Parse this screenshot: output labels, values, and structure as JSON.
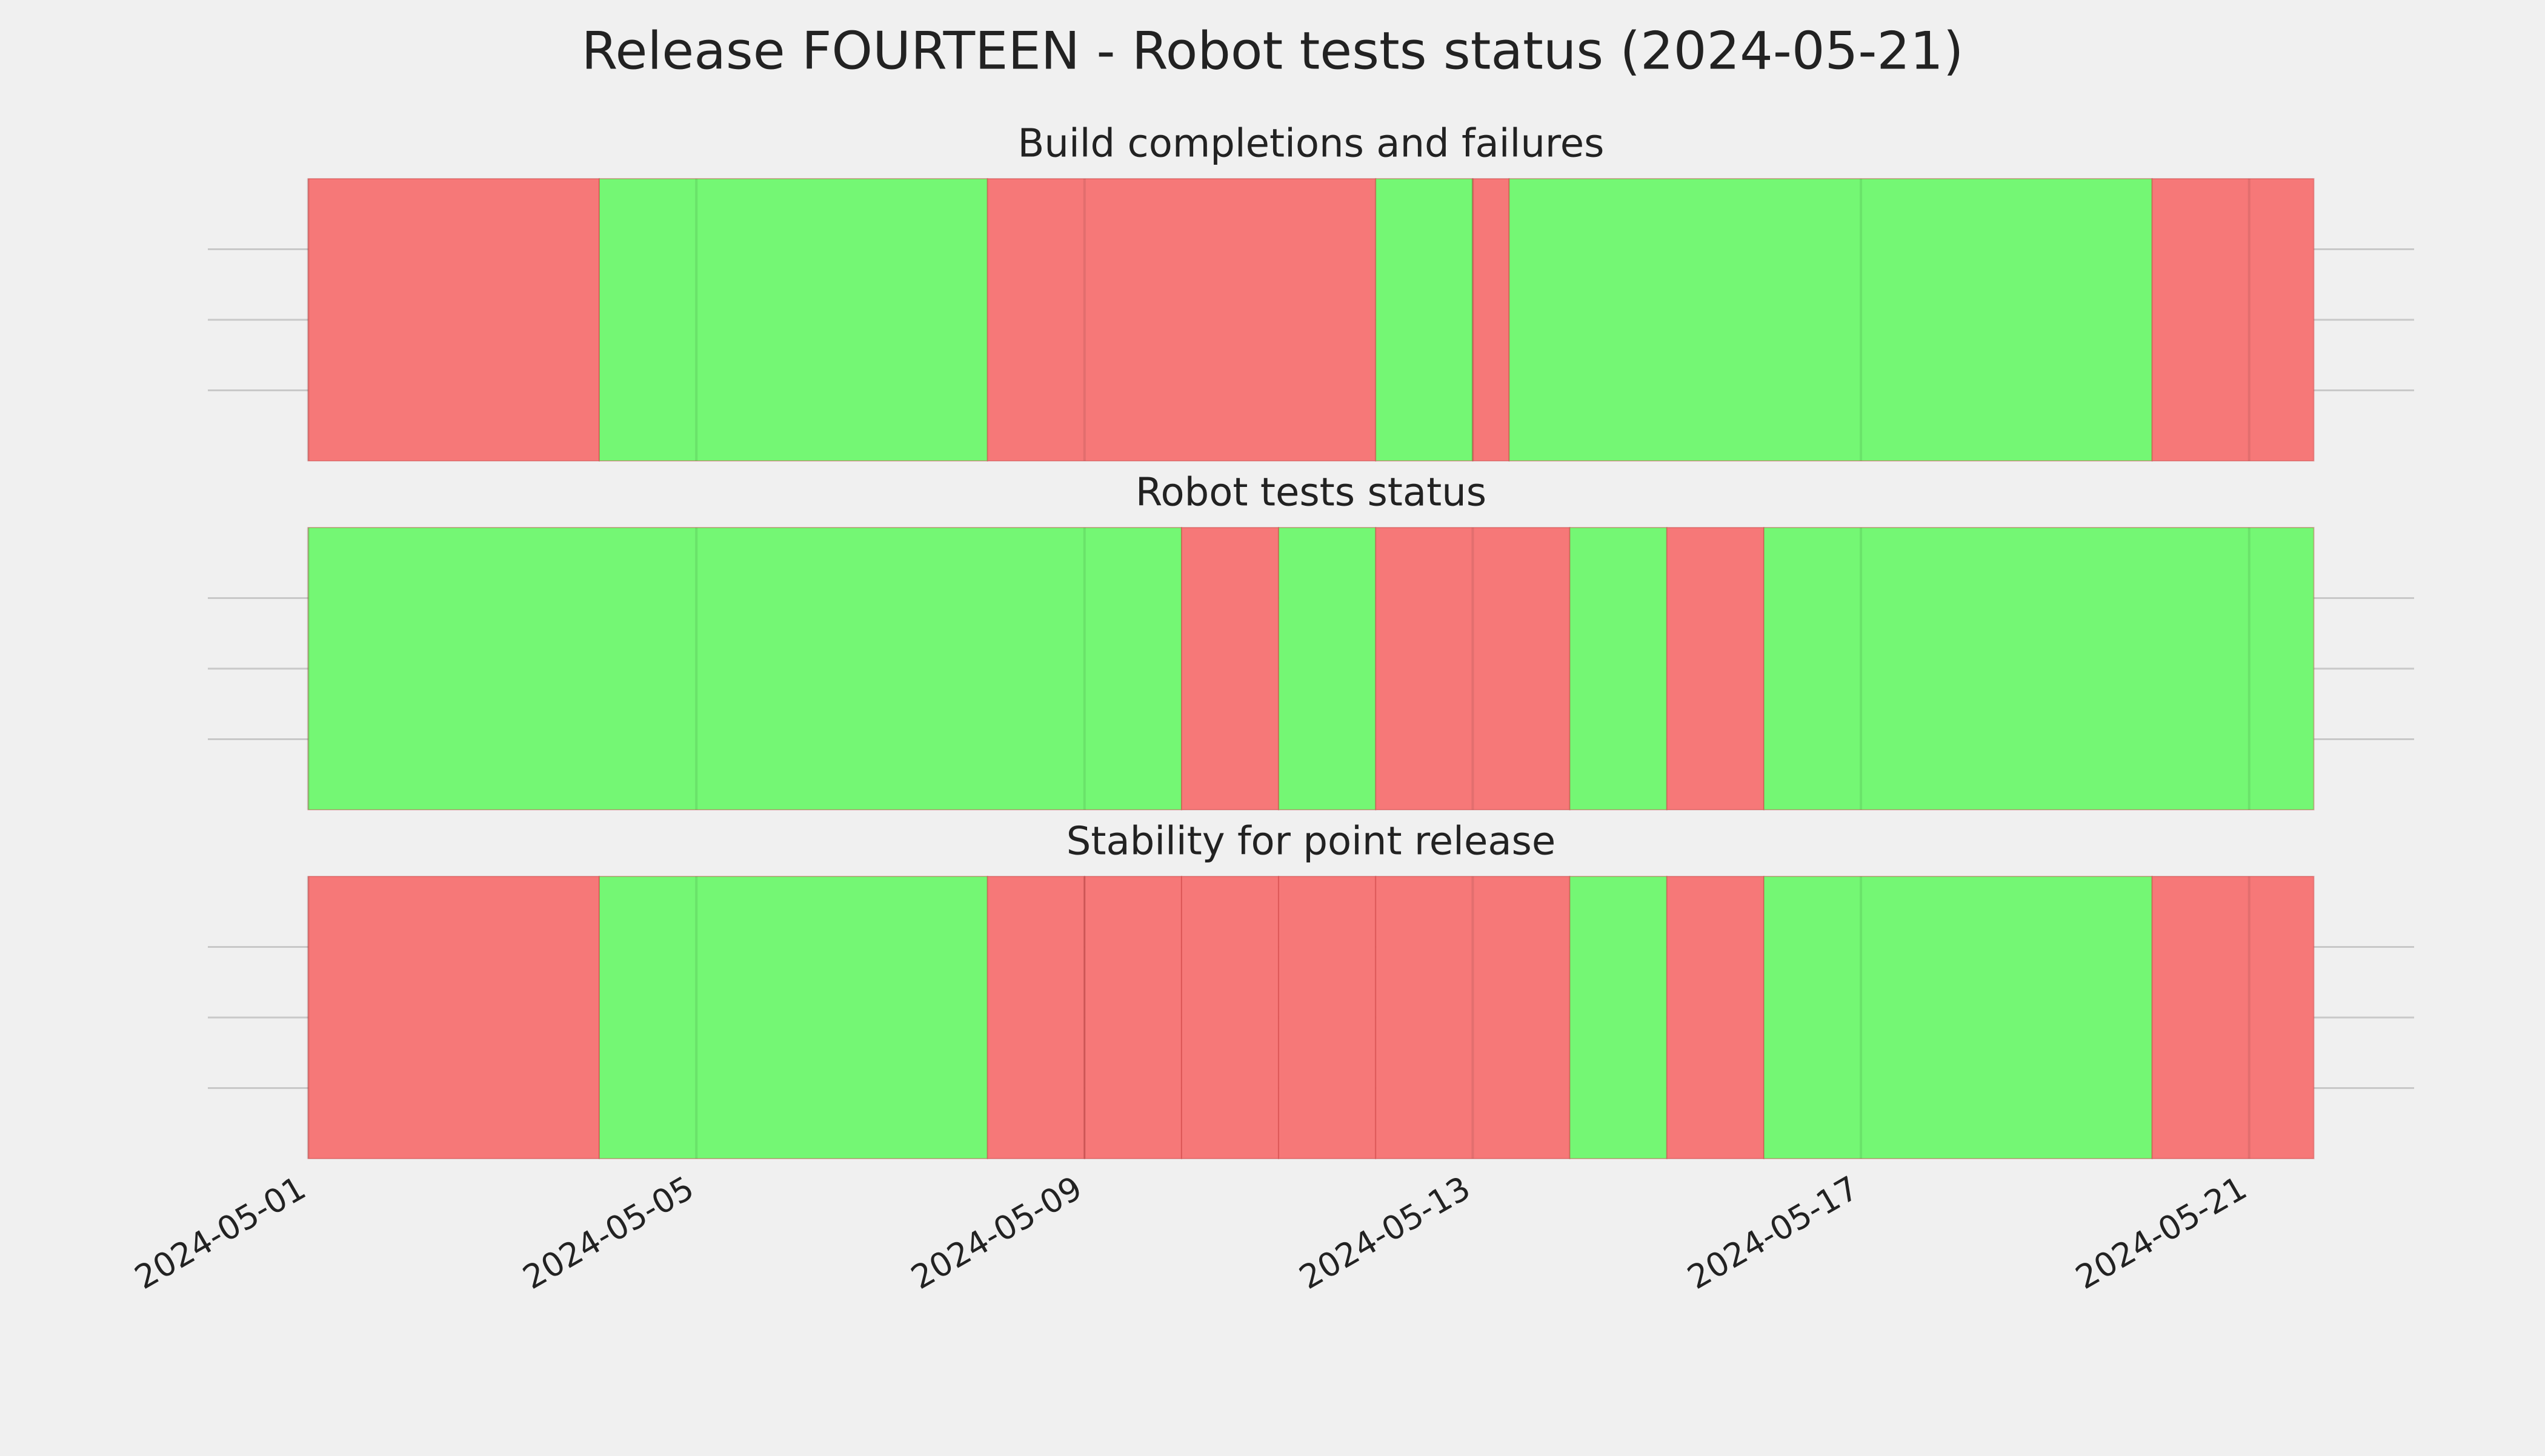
{
  "title": "Release FOURTEEN - Robot tests status (2024-05-21)",
  "chart_data": [
    {
      "type": "span",
      "title": "Build completions and failures",
      "xlim": [
        "2024-04-29T23:12",
        "2024-05-22T16:48"
      ],
      "xticks": [
        "2024-05-01",
        "2024-05-05",
        "2024-05-09",
        "2024-05-13",
        "2024-05-17",
        "2024-05-21"
      ],
      "segments": [
        {
          "start": "2024-05-01",
          "end": "2024-05-04",
          "color": "#f67878"
        },
        {
          "start": "2024-05-04",
          "end": "2024-05-08",
          "color": "#74f774"
        },
        {
          "start": "2024-05-08",
          "end": "2024-05-12",
          "color": "#f67878"
        },
        {
          "start": "2024-05-12",
          "end": "2024-05-13",
          "color": "#74f774"
        },
        {
          "start": "2024-05-13",
          "end": "2024-05-13T09:00",
          "color": "#f67878"
        },
        {
          "start": "2024-05-13T09:00",
          "end": "2024-05-20",
          "color": "#74f774"
        },
        {
          "start": "2024-05-20",
          "end": "2024-05-21T16:00",
          "color": "#f67878"
        }
      ]
    },
    {
      "type": "span",
      "title": "Robot tests status",
      "xlim": [
        "2024-04-29T23:12",
        "2024-05-22T16:48"
      ],
      "xticks": [
        "2024-05-01",
        "2024-05-05",
        "2024-05-09",
        "2024-05-13",
        "2024-05-17",
        "2024-05-21"
      ],
      "segments": [
        {
          "start": "2024-05-01",
          "end": "2024-05-10",
          "color": "#74f774"
        },
        {
          "start": "2024-05-10",
          "end": "2024-05-11",
          "color": "#f67878"
        },
        {
          "start": "2024-05-11",
          "end": "2024-05-12",
          "color": "#74f774"
        },
        {
          "start": "2024-05-12",
          "end": "2024-05-14",
          "color": "#f67878"
        },
        {
          "start": "2024-05-14",
          "end": "2024-05-15",
          "color": "#74f774"
        },
        {
          "start": "2024-05-15",
          "end": "2024-05-16",
          "color": "#f67878"
        },
        {
          "start": "2024-05-16",
          "end": "2024-05-21T16:00",
          "color": "#74f774"
        }
      ]
    },
    {
      "type": "span",
      "title": "Stability for point release",
      "xlim": [
        "2024-04-29T23:12",
        "2024-05-22T16:48"
      ],
      "xticks": [
        "2024-05-01",
        "2024-05-05",
        "2024-05-09",
        "2024-05-13",
        "2024-05-17",
        "2024-05-21"
      ],
      "segments": [
        {
          "start": "2024-05-01",
          "end": "2024-05-04",
          "color": "#f67878"
        },
        {
          "start": "2024-05-04",
          "end": "2024-05-08",
          "color": "#74f774"
        },
        {
          "start": "2024-05-08",
          "end": "2024-05-09",
          "color": "#f67878"
        },
        {
          "start": "2024-05-09",
          "end": "2024-05-10",
          "color": "#f67878"
        },
        {
          "start": "2024-05-10",
          "end": "2024-05-11",
          "color": "#f67878"
        },
        {
          "start": "2024-05-11",
          "end": "2024-05-12",
          "color": "#f67878"
        },
        {
          "start": "2024-05-12",
          "end": "2024-05-14",
          "color": "#f67878"
        },
        {
          "start": "2024-05-14",
          "end": "2024-05-15",
          "color": "#74f774"
        },
        {
          "start": "2024-05-15",
          "end": "2024-05-16",
          "color": "#f67878"
        },
        {
          "start": "2024-05-16",
          "end": "2024-05-20",
          "color": "#74f774"
        },
        {
          "start": "2024-05-20",
          "end": "2024-05-21T16:00",
          "color": "#f67878"
        }
      ]
    }
  ]
}
